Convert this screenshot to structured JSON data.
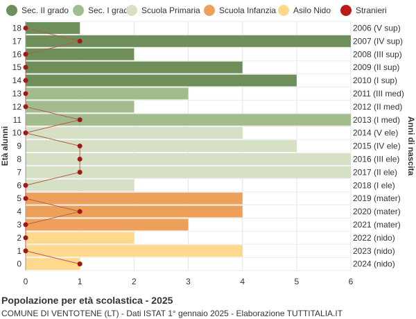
{
  "chart_data": {
    "type": "bar",
    "orientation": "horizontal",
    "ages": [
      "18",
      "17",
      "16",
      "15",
      "14",
      "13",
      "12",
      "11",
      "10",
      "9",
      "8",
      "7",
      "6",
      "5",
      "4",
      "3",
      "2",
      "1",
      "0"
    ],
    "birth_years": [
      "2006 (V sup)",
      "2007 (IV sup)",
      "2008 (III sup)",
      "2009 (II sup)",
      "2010 (I sup)",
      "2011 (III med)",
      "2012 (II med)",
      "2013 (I med)",
      "2014 (V ele)",
      "2015 (IV ele)",
      "2016 (III ele)",
      "2017 (II ele)",
      "2018 (I ele)",
      "2019 (mater)",
      "2020 (mater)",
      "2021 (mater)",
      "2022 (nido)",
      "2023 (nido)",
      "2024 (nido)"
    ],
    "values": [
      1,
      6,
      2,
      4,
      5,
      3,
      2,
      6,
      4,
      5,
      6,
      6,
      2,
      4,
      4,
      3,
      2,
      4,
      1
    ],
    "groups": [
      0,
      0,
      0,
      0,
      0,
      1,
      1,
      1,
      2,
      2,
      2,
      2,
      2,
      3,
      3,
      3,
      4,
      4,
      4
    ],
    "stranieri": [
      0,
      1,
      0,
      0,
      0,
      0,
      0,
      1,
      0,
      1,
      1,
      1,
      0,
      0,
      1,
      0,
      0,
      0,
      1
    ],
    "legend": [
      {
        "name": "Sec. II grado",
        "color": "#6e8f5a"
      },
      {
        "name": "Sec. I grado",
        "color": "#a2bc8e"
      },
      {
        "name": "Scuola Primaria",
        "color": "#d5e0c4"
      },
      {
        "name": "Scuola Infanzia",
        "color": "#eda05a"
      },
      {
        "name": "Asilo Nido",
        "color": "#fdd88d"
      },
      {
        "name": "Stranieri",
        "color": "#bb1a1a"
      }
    ],
    "x_ticks": [
      0,
      1,
      2,
      3,
      4,
      5,
      6
    ],
    "xlim": [
      0,
      6
    ],
    "ylabel": "Età alunni",
    "ylabel_right": "Anni di nascita",
    "grid": true,
    "legend_position": "top"
  },
  "footer": {
    "title": "Popolazione per età scolastica - 2025",
    "subtitle": "COMUNE DI VENTOTENE (LT) - Dati ISTAT 1° gennaio 2025 - Elaborazione TUTTITALIA.IT"
  }
}
